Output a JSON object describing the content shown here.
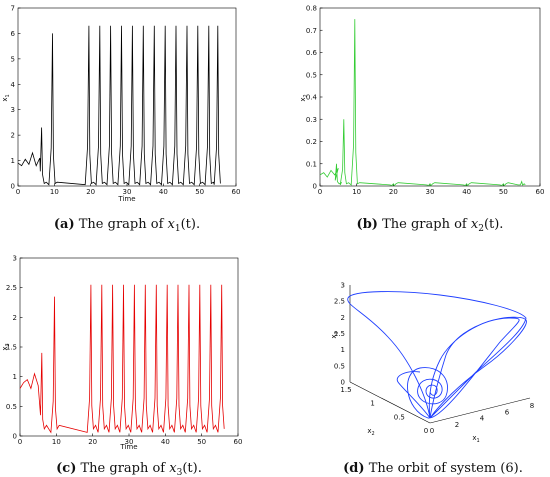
{
  "chart_data": [
    {
      "id": "a",
      "type": "line",
      "caption_label": "(a)",
      "caption_text": "The graph of",
      "caption_var": "x",
      "caption_sub": "1",
      "caption_arg": "(t).",
      "xlabel": "Time",
      "ylabel_base": "x",
      "ylabel_sub": "1",
      "xlim": [
        0,
        60
      ],
      "ylim": [
        0,
        7
      ],
      "xticks": [
        "0",
        "10",
        "20",
        "30",
        "40",
        "50",
        "60"
      ],
      "yticks": [
        "0",
        "1",
        "2",
        "3",
        "4",
        "5",
        "6",
        "7"
      ],
      "series": [
        {
          "color": "#000000",
          "x_start": 0,
          "x_end": 55,
          "baseline": 0.05,
          "initial_oscillation": [
            [
              0,
              0.9
            ],
            [
              1,
              0.8
            ],
            [
              2,
              1.05
            ],
            [
              3,
              0.85
            ],
            [
              4,
              1.3
            ],
            [
              5,
              0.8
            ],
            [
              6,
              1.1
            ]
          ],
          "spikes": [
            [
              6.5,
              2.3
            ],
            [
              9.5,
              6.0
            ],
            [
              19.5,
              6.3
            ],
            [
              22.5,
              6.3
            ],
            [
              25.5,
              6.3
            ],
            [
              28.5,
              6.3
            ],
            [
              31.5,
              6.3
            ],
            [
              34.5,
              6.3
            ],
            [
              37.5,
              6.3
            ],
            [
              40.5,
              6.3
            ],
            [
              43.5,
              6.3
            ],
            [
              46.5,
              6.3
            ],
            [
              49.5,
              6.3
            ],
            [
              52.5,
              6.3
            ],
            [
              55,
              6.3
            ]
          ]
        }
      ]
    },
    {
      "id": "b",
      "type": "line",
      "caption_label": "(b)",
      "caption_text": "The graph of",
      "caption_var": "x",
      "caption_sub": "2",
      "caption_arg": "(t).",
      "xlabel": "",
      "ylabel_base": "x",
      "ylabel_sub": "2",
      "xlim": [
        0,
        60
      ],
      "ylim": [
        0,
        0.8
      ],
      "xticks": [
        "0",
        "10",
        "20",
        "30",
        "40",
        "50",
        "60"
      ],
      "yticks": [
        "0",
        "0.1",
        "0.2",
        "0.3",
        "0.4",
        "0.5",
        "0.6",
        "0.7",
        "0.8"
      ],
      "series": [
        {
          "color": "#33cc33",
          "x_start": 0,
          "x_end": 56,
          "baseline": 0.005,
          "initial_oscillation": [
            [
              0,
              0.05
            ],
            [
              1,
              0.06
            ],
            [
              2,
              0.04
            ],
            [
              3,
              0.07
            ],
            [
              4,
              0.05
            ],
            [
              5,
              0.08
            ]
          ],
          "spikes": [
            [
              4.5,
              0.1
            ],
            [
              6.5,
              0.3
            ],
            [
              9.5,
              0.75
            ],
            [
              20,
              0.01
            ],
            [
              30,
              0.01
            ],
            [
              40,
              0.01
            ],
            [
              50,
              0.01
            ],
            [
              55,
              0.02
            ]
          ]
        }
      ]
    },
    {
      "id": "c",
      "type": "line",
      "caption_label": "(c)",
      "caption_text": "The graph of",
      "caption_var": "x",
      "caption_sub": "3",
      "caption_arg": "(t).",
      "xlabel": "Time",
      "ylabel_base": "x",
      "ylabel_sub": "3",
      "xlim": [
        0,
        60
      ],
      "ylim": [
        0,
        3
      ],
      "xticks": [
        "0",
        "10",
        "20",
        "30",
        "40",
        "50",
        "60"
      ],
      "yticks": [
        "0",
        "0.5",
        "1",
        "1.5",
        "2",
        "2.5",
        "3"
      ],
      "series": [
        {
          "color": "#e60000",
          "x_start": 0,
          "x_end": 56,
          "baseline": 0.06,
          "initial_oscillation": [
            [
              0,
              0.8
            ],
            [
              1,
              0.9
            ],
            [
              2,
              0.95
            ],
            [
              3,
              0.8
            ],
            [
              4,
              1.05
            ],
            [
              5,
              0.85
            ]
          ],
          "spikes": [
            [
              6,
              1.4
            ],
            [
              9.5,
              2.35
            ],
            [
              19.5,
              2.55
            ],
            [
              22.5,
              2.55
            ],
            [
              25.5,
              2.55
            ],
            [
              28.5,
              2.55
            ],
            [
              31.5,
              2.55
            ],
            [
              34.5,
              2.55
            ],
            [
              37.5,
              2.55
            ],
            [
              40.5,
              2.55
            ],
            [
              43.5,
              2.55
            ],
            [
              46.5,
              2.55
            ],
            [
              49.5,
              2.55
            ],
            [
              52.5,
              2.55
            ],
            [
              55.5,
              2.55
            ]
          ]
        }
      ]
    },
    {
      "id": "d",
      "type": "line",
      "caption_label": "(d)",
      "caption_text": "The orbit of system (6).",
      "xlabel_base": "x",
      "xlabel_sub": "1",
      "ylabel_base": "x",
      "ylabel_sub": "2",
      "zlabel_base": "x",
      "zlabel_sub": "3",
      "x1_ticks": [
        "0",
        "2",
        "4",
        "6",
        "8"
      ],
      "x2_ticks": [
        "0",
        "0.5",
        "1",
        "1.5"
      ],
      "x3_ticks": [
        "0",
        "0.5",
        "1",
        "1.5",
        "2",
        "2.5",
        "3"
      ],
      "series": [
        {
          "color": "#1f3fff"
        }
      ]
    }
  ]
}
